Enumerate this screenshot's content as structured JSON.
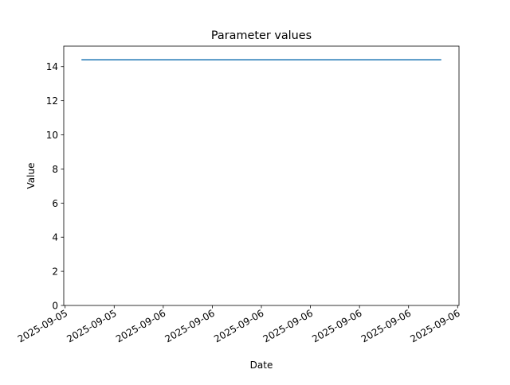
{
  "chart_data": {
    "type": "line",
    "title": "Parameter values",
    "xlabel": "Date",
    "ylabel": "Value",
    "xlim": [
      "2025-09-05T17:55",
      "2025-09-06T18:05"
    ],
    "ylim": [
      0,
      15.2
    ],
    "x_ticks": [
      "2025-09-05T18:00",
      "2025-09-05T21:00",
      "2025-09-06T00:00",
      "2025-09-06T03:00",
      "2025-09-06T06:00",
      "2025-09-06T09:00",
      "2025-09-06T12:00",
      "2025-09-06T15:00",
      "2025-09-06T18:00"
    ],
    "x_tick_labels": [
      "2025-09-05",
      "2025-09-05",
      "2025-09-06",
      "2025-09-06",
      "2025-09-06",
      "2025-09-06",
      "2025-09-06",
      "2025-09-06",
      "2025-09-06"
    ],
    "y_ticks": [
      0,
      2,
      4,
      6,
      8,
      10,
      12,
      14
    ],
    "series": [
      {
        "x": [
          "2025-09-05T19:00",
          "2025-09-06T17:00"
        ],
        "y": [
          14.4,
          14.4
        ],
        "color": "#1f77b4"
      }
    ],
    "grid": false
  }
}
